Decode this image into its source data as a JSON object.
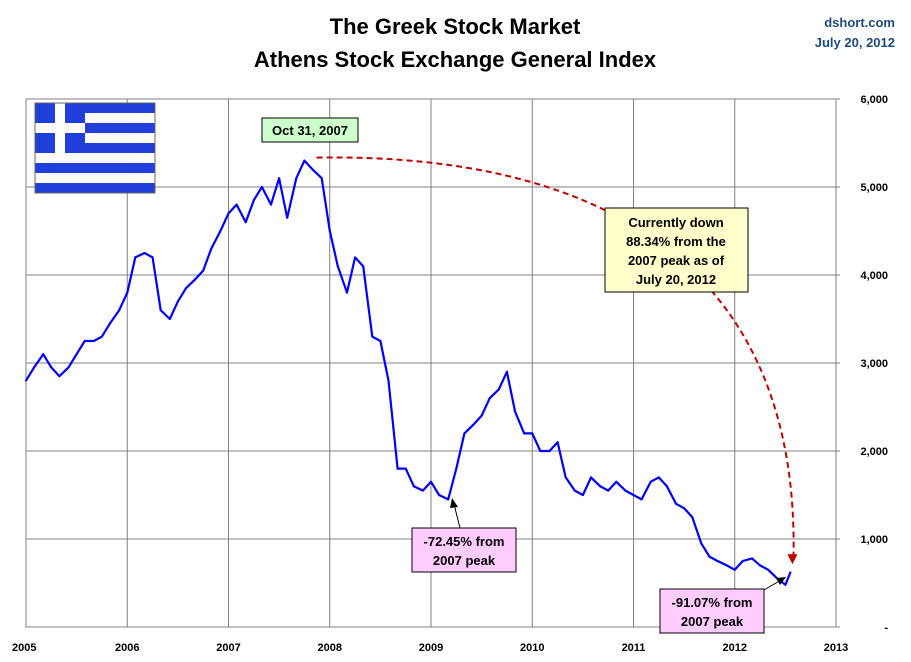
{
  "source": "dshort.com",
  "date": "July 20, 2012",
  "colors": {
    "series": "#0000ff",
    "projection": "#c00000",
    "grid": "#808080",
    "peak_label_bg": "#ccffcc",
    "note_bg": "#ffffcc",
    "trough_label_bg": "#ffccff",
    "flag_blue": "#1f3fd8"
  },
  "flag_icon": "greek-flag-icon",
  "chart_data": {
    "type": "line",
    "title": "The Greek Stock Market",
    "subtitle": "Athens Stock Exchange General Index",
    "xlabel": "",
    "ylabel": "",
    "xlim": [
      2005,
      2013
    ],
    "ylim": [
      0,
      6000
    ],
    "x_ticks": [
      {
        "value": 2005,
        "label": "2005"
      },
      {
        "value": 2006,
        "label": "2006"
      },
      {
        "value": 2007,
        "label": "2007"
      },
      {
        "value": 2008,
        "label": "2008"
      },
      {
        "value": 2009,
        "label": "2009"
      },
      {
        "value": 2010,
        "label": "2010"
      },
      {
        "value": 2011,
        "label": "2011"
      },
      {
        "value": 2012,
        "label": "2012"
      },
      {
        "value": 2013,
        "label": "2013"
      }
    ],
    "y_ticks": [
      {
        "value": 0,
        "label": "-"
      },
      {
        "value": 1000,
        "label": "1,000"
      },
      {
        "value": 2000,
        "label": "2,000"
      },
      {
        "value": 3000,
        "label": "3,000"
      },
      {
        "value": 4000,
        "label": "4,000"
      },
      {
        "value": 5000,
        "label": "5,000"
      },
      {
        "value": 6000,
        "label": "6,000"
      }
    ],
    "grid": true,
    "y_axis_side": "right",
    "series": [
      {
        "name": "",
        "x": [
          2005.0,
          2005.08,
          2005.17,
          2005.25,
          2005.33,
          2005.42,
          2005.5,
          2005.58,
          2005.67,
          2005.75,
          2005.83,
          2005.92,
          2006.0,
          2006.08,
          2006.17,
          2006.25,
          2006.33,
          2006.42,
          2006.5,
          2006.58,
          2006.67,
          2006.75,
          2006.83,
          2006.92,
          2007.0,
          2007.08,
          2007.17,
          2007.25,
          2007.33,
          2007.42,
          2007.5,
          2007.58,
          2007.67,
          2007.75,
          2007.83,
          2007.92,
          2008.0,
          2008.08,
          2008.17,
          2008.25,
          2008.33,
          2008.42,
          2008.5,
          2008.58,
          2008.67,
          2008.75,
          2008.83,
          2008.92,
          2009.0,
          2009.08,
          2009.17,
          2009.25,
          2009.33,
          2009.42,
          2009.5,
          2009.58,
          2009.67,
          2009.75,
          2009.83,
          2009.92,
          2010.0,
          2010.08,
          2010.17,
          2010.25,
          2010.33,
          2010.42,
          2010.5,
          2010.58,
          2010.67,
          2010.75,
          2010.83,
          2010.92,
          2011.0,
          2011.08,
          2011.17,
          2011.25,
          2011.33,
          2011.42,
          2011.5,
          2011.58,
          2011.67,
          2011.75,
          2011.83,
          2011.92,
          2012.0,
          2012.08,
          2012.17,
          2012.25,
          2012.33,
          2012.42,
          2012.5,
          2012.55
        ],
        "values": [
          2800,
          2950,
          3100,
          2950,
          2850,
          2950,
          3100,
          3250,
          3250,
          3300,
          3450,
          3600,
          3800,
          4200,
          4250,
          4200,
          3600,
          3500,
          3700,
          3850,
          3950,
          4050,
          4300,
          4500,
          4700,
          4800,
          4600,
          4850,
          5000,
          4800,
          5100,
          4650,
          5100,
          5300,
          5200,
          5100,
          4500,
          4100,
          3800,
          4200,
          4100,
          3300,
          3250,
          2800,
          1800,
          1800,
          1600,
          1550,
          1650,
          1500,
          1450,
          1800,
          2200,
          2300,
          2400,
          2600,
          2700,
          2900,
          2450,
          2200,
          2200,
          2000,
          2000,
          2100,
          1700,
          1550,
          1500,
          1700,
          1600,
          1550,
          1650,
          1550,
          1500,
          1450,
          1650,
          1700,
          1600,
          1400,
          1350,
          1250,
          950,
          800,
          750,
          700,
          650,
          750,
          780,
          700,
          650,
          550,
          480,
          620
        ]
      }
    ],
    "annotations": [
      {
        "text": "Oct 31, 2007",
        "x": 2007.83,
        "y": 5334,
        "style": "peak"
      },
      {
        "text": [
          "-72.45% from",
          "2007 peak"
        ],
        "x": 2009.19,
        "y": 1470,
        "style": "trough"
      },
      {
        "text": [
          "-91.07% from",
          "2007 peak"
        ],
        "x": 2012.43,
        "y": 476,
        "style": "trough"
      },
      {
        "text": [
          "Currently down",
          "88.34% from the",
          "2007 peak as of",
          "July 20, 2012"
        ],
        "x": 2012.55,
        "y": 622,
        "style": "note"
      }
    ]
  }
}
